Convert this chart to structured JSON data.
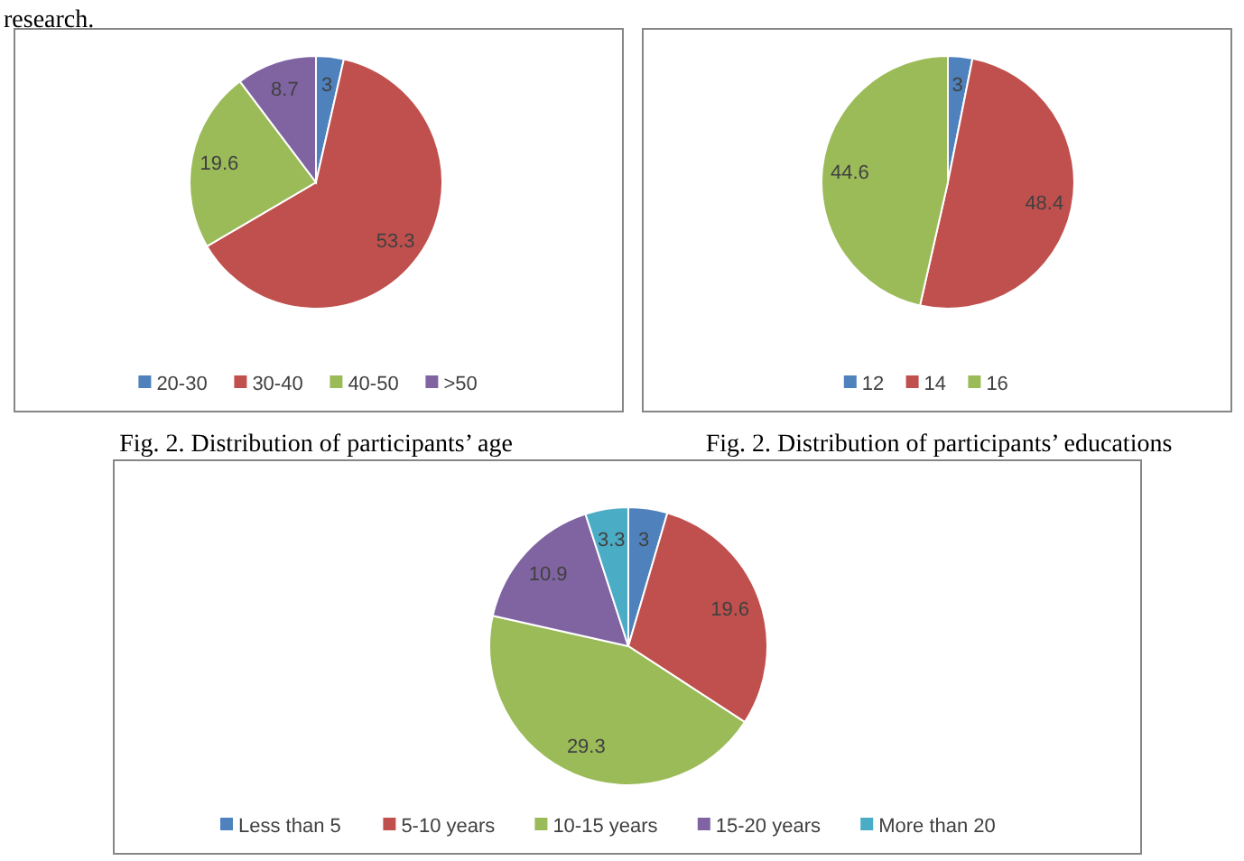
{
  "chart_data": [
    {
      "type": "pie",
      "title": "Fig. 2. Distribution of participants’ age",
      "annotations": [
        "research."
      ],
      "categories": [
        "20-30",
        "30-40",
        "40-50",
        ">50"
      ],
      "values": [
        3,
        53.3,
        19.6,
        8.7
      ],
      "colors": [
        "#4f81bd",
        "#c0504d",
        "#9bbb59",
        "#8064a2"
      ],
      "data_labels": true,
      "legend": "bottom"
    },
    {
      "type": "pie",
      "title": "Fig. 2. Distribution of participants’ educations",
      "categories": [
        "12",
        "14",
        "16"
      ],
      "values": [
        3,
        48.4,
        44.6
      ],
      "colors": [
        "#4f81bd",
        "#c0504d",
        "#9bbb59"
      ],
      "data_labels": true,
      "legend": "bottom"
    },
    {
      "type": "pie",
      "categories": [
        "Less than 5",
        "5-10 years",
        "10-15 years",
        "15-20 years",
        "More than 20"
      ],
      "values": [
        3,
        19.6,
        29.3,
        10.9,
        3.3
      ],
      "colors": [
        "#4f81bd",
        "#c0504d",
        "#9bbb59",
        "#8064a2",
        "#4bacc6"
      ],
      "data_labels": true,
      "legend": "bottom"
    }
  ]
}
